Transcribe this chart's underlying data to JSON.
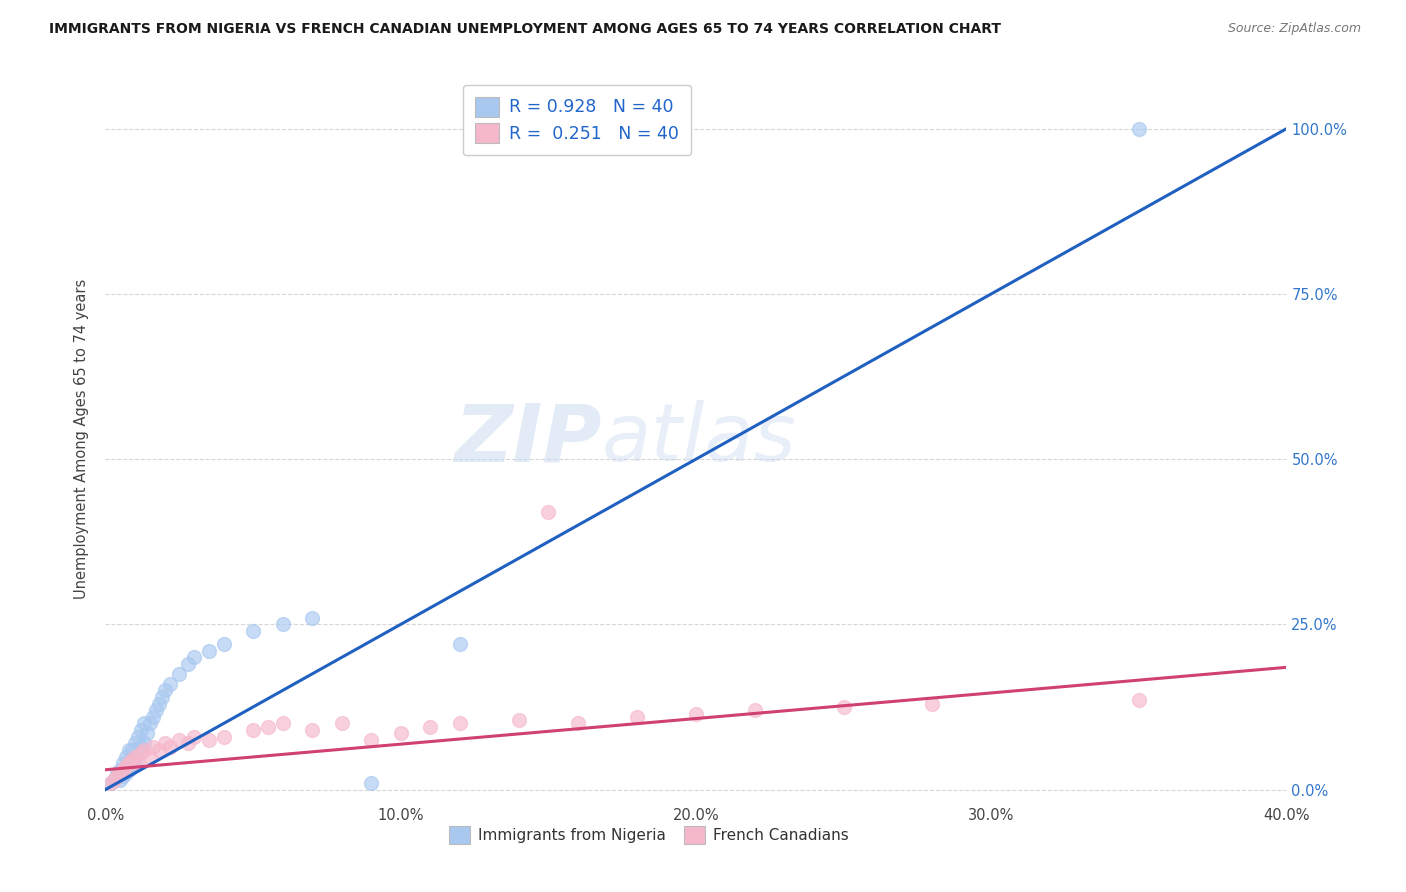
{
  "title": "IMMIGRANTS FROM NIGERIA VS FRENCH CANADIAN UNEMPLOYMENT AMONG AGES 65 TO 74 YEARS CORRELATION CHART",
  "source": "Source: ZipAtlas.com",
  "ylabel": "Unemployment Among Ages 65 to 74 years",
  "xlim": [
    0.0,
    0.4
  ],
  "ylim": [
    -0.02,
    1.08
  ],
  "right_ytick_labels": [
    "0.0%",
    "25.0%",
    "50.0%",
    "75.0%",
    "100.0%"
  ],
  "right_ytick_values": [
    0.0,
    0.25,
    0.5,
    0.75,
    1.0
  ],
  "xtick_labels": [
    "0.0%",
    "10.0%",
    "20.0%",
    "30.0%",
    "40.0%"
  ],
  "xtick_values": [
    0.0,
    0.1,
    0.2,
    0.3,
    0.4
  ],
  "nigeria_R": "0.928",
  "nigeria_N": "40",
  "french_R": "0.251",
  "french_N": "40",
  "nigeria_color": "#a8c8f0",
  "french_color": "#f5b8cb",
  "nigeria_line_color": "#2060c0",
  "french_line_color": "#d04070",
  "legend_text_color": "#2266cc",
  "watermark_color": "#c8d8f0",
  "background_color": "#ffffff",
  "nigeria_scatter_x": [
    0.002,
    0.003,
    0.004,
    0.004,
    0.005,
    0.005,
    0.006,
    0.006,
    0.007,
    0.007,
    0.008,
    0.008,
    0.009,
    0.009,
    0.01,
    0.01,
    0.011,
    0.012,
    0.012,
    0.013,
    0.013,
    0.014,
    0.015,
    0.016,
    0.017,
    0.018,
    0.019,
    0.02,
    0.022,
    0.025,
    0.028,
    0.03,
    0.035,
    0.04,
    0.05,
    0.06,
    0.07,
    0.09,
    0.12,
    0.35
  ],
  "nigeria_scatter_y": [
    0.01,
    0.015,
    0.02,
    0.025,
    0.015,
    0.03,
    0.02,
    0.04,
    0.025,
    0.05,
    0.03,
    0.06,
    0.035,
    0.06,
    0.04,
    0.07,
    0.08,
    0.065,
    0.09,
    0.07,
    0.1,
    0.085,
    0.1,
    0.11,
    0.12,
    0.13,
    0.14,
    0.15,
    0.16,
    0.175,
    0.19,
    0.2,
    0.21,
    0.22,
    0.24,
    0.25,
    0.26,
    0.01,
    0.22,
    1.0
  ],
  "french_scatter_x": [
    0.002,
    0.003,
    0.004,
    0.005,
    0.006,
    0.007,
    0.008,
    0.009,
    0.01,
    0.011,
    0.012,
    0.013,
    0.015,
    0.016,
    0.018,
    0.02,
    0.022,
    0.025,
    0.028,
    0.03,
    0.035,
    0.04,
    0.05,
    0.055,
    0.06,
    0.07,
    0.08,
    0.09,
    0.1,
    0.11,
    0.12,
    0.14,
    0.15,
    0.16,
    0.18,
    0.2,
    0.22,
    0.25,
    0.28,
    0.35
  ],
  "french_scatter_y": [
    0.01,
    0.015,
    0.02,
    0.025,
    0.03,
    0.035,
    0.04,
    0.045,
    0.05,
    0.04,
    0.055,
    0.06,
    0.05,
    0.065,
    0.06,
    0.07,
    0.065,
    0.075,
    0.07,
    0.08,
    0.075,
    0.08,
    0.09,
    0.095,
    0.1,
    0.09,
    0.1,
    0.075,
    0.085,
    0.095,
    0.1,
    0.105,
    0.42,
    0.1,
    0.11,
    0.115,
    0.12,
    0.125,
    0.13,
    0.135
  ],
  "nigeria_line_x": [
    0.0,
    0.4
  ],
  "nigeria_line_y": [
    0.0,
    1.0
  ],
  "french_line_x": [
    0.0,
    0.4
  ],
  "french_line_y": [
    0.03,
    0.185
  ]
}
